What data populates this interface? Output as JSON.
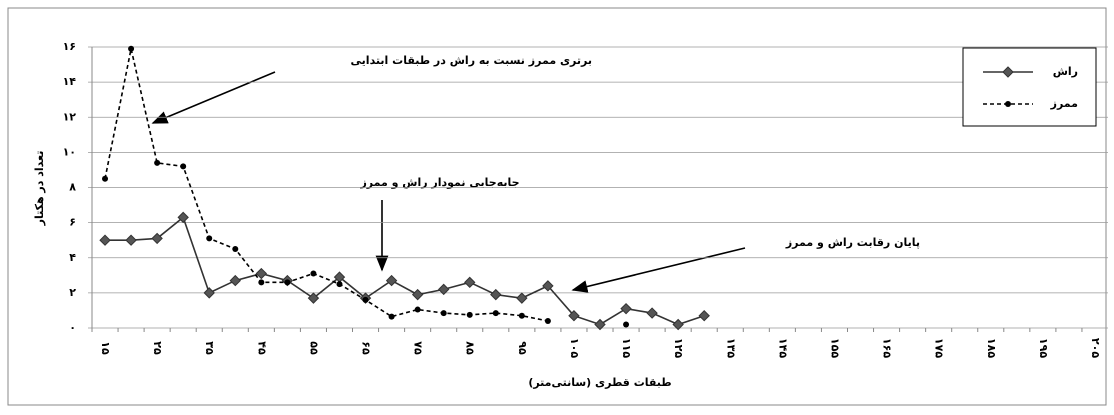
{
  "chart_data": {
    "type": "line",
    "x_label": "طبقات قطری (سانتی‌متر)",
    "y_label": "تعداد در هکتار",
    "categories": [
      "۱۵",
      null,
      "۲۵",
      null,
      "۳۵",
      null,
      "۴۵",
      null,
      "۵۵",
      null,
      "۶۵",
      null,
      "۷۵",
      null,
      "۸۵",
      null,
      "۹۵",
      null,
      "۱۰۵",
      null,
      "۱۱۵",
      null,
      "۱۲۵",
      null,
      "۱۳۵",
      null,
      "۱۴۵",
      null,
      "۱۵۵",
      null,
      "۱۶۵",
      null,
      "۱۷۵",
      null,
      "۱۸۵",
      null,
      "۱۹۵",
      null,
      "۲۰۵"
    ],
    "series": [
      {
        "name": "راش",
        "color": "#333333",
        "line_style": "solid",
        "marker": "diamond",
        "values": [
          5.0,
          5.0,
          5.1,
          6.3,
          2.0,
          2.7,
          3.1,
          2.7,
          1.7,
          2.9,
          1.7,
          2.7,
          1.9,
          2.2,
          2.6,
          1.9,
          1.7,
          2.4,
          0.7,
          0.2,
          1.1,
          0.85,
          0.2,
          0.7,
          null,
          null,
          null,
          null,
          null,
          null,
          null,
          null,
          null,
          null,
          null,
          null,
          null,
          null,
          null
        ]
      },
      {
        "name": "ممرز",
        "color": "#000000",
        "line_style": "dashed",
        "marker": "circle",
        "values": [
          8.5,
          15.9,
          9.4,
          9.2,
          5.1,
          4.5,
          2.6,
          2.6,
          3.1,
          2.5,
          1.6,
          0.65,
          1.05,
          0.85,
          0.75,
          0.85,
          0.7,
          0.4,
          null,
          null,
          0.2,
          null,
          null,
          null,
          null,
          null,
          null,
          null,
          null,
          null,
          null,
          null,
          null,
          null,
          null,
          null,
          null,
          null,
          null
        ]
      }
    ],
    "ylim": [
      0,
      16
    ],
    "yticks": [
      {
        "value": 0,
        "label": "۰"
      },
      {
        "value": 2,
        "label": "۲"
      },
      {
        "value": 4,
        "label": "۴"
      },
      {
        "value": 6,
        "label": "۶"
      },
      {
        "value": 8,
        "label": "۸"
      },
      {
        "value": 10,
        "label": "۱۰"
      },
      {
        "value": 12,
        "label": "۱۲"
      },
      {
        "value": 14,
        "label": "۱۴"
      },
      {
        "value": 16,
        "label": "۱۶"
      }
    ],
    "grid": true,
    "legend": "top-right",
    "annotations": [
      "برتری ممرز نسبت به راش در طبقات ابتدایی",
      "جابه‌جایی نمودار راش و ممرز",
      "پایان رقابت راش و ممرز"
    ]
  }
}
